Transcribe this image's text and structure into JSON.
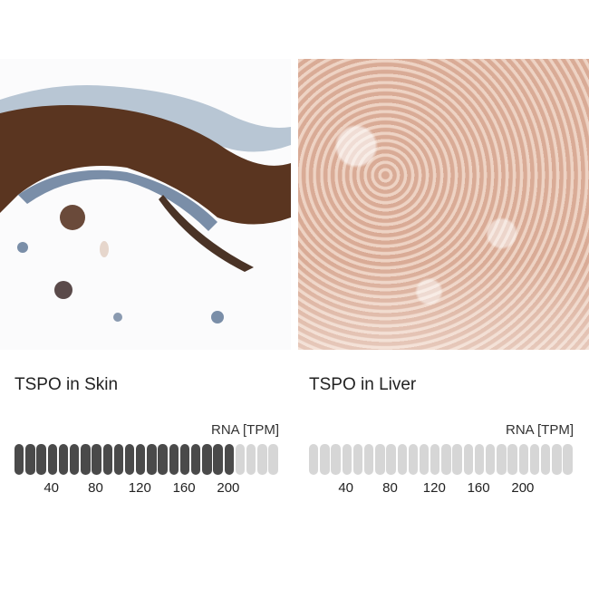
{
  "panels": [
    {
      "title": "TSPO in Skin",
      "tissue": "Skin",
      "unit_label": "RNA [TPM]",
      "rna_tpm": 200,
      "segments_total": 24,
      "segment_step_tpm": 10,
      "ticks": [
        "40",
        "80",
        "120",
        "160",
        "200"
      ],
      "fill_color": "#4a4a4a",
      "empty_color": "#d6d6d6"
    },
    {
      "title": "TSPO in Liver",
      "tissue": "Liver",
      "unit_label": "RNA [TPM]",
      "rna_tpm": 0,
      "segments_total": 24,
      "segment_step_tpm": 10,
      "ticks": [
        "40",
        "80",
        "120",
        "160",
        "200"
      ],
      "fill_color": "#4a4a4a",
      "empty_color": "#d6d6d6"
    }
  ]
}
